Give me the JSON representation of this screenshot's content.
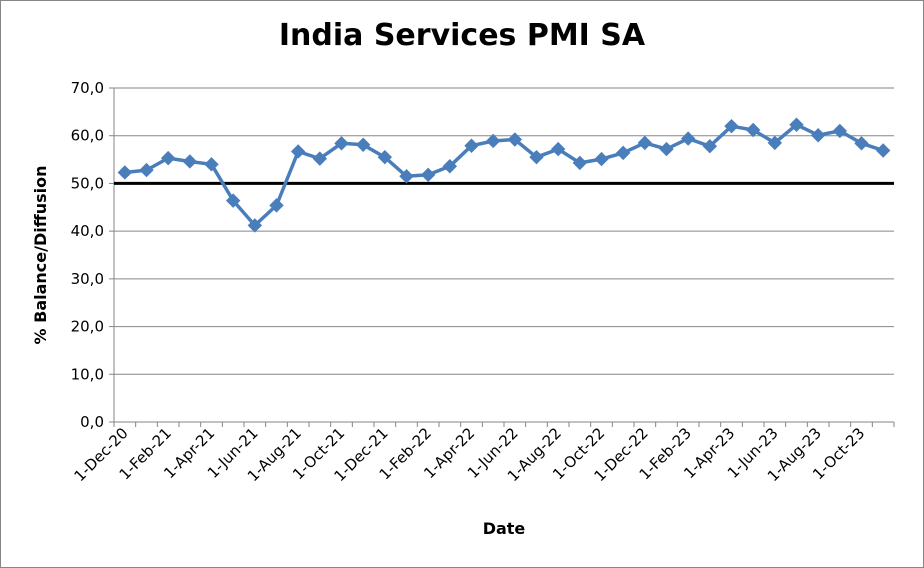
{
  "chart_data": {
    "type": "line",
    "title": "India Services PMI SA",
    "xlabel": "Date",
    "ylabel": "% Balance/Diffusion",
    "ylim": [
      0,
      70
    ],
    "y_ticks": [
      "0,0",
      "10,0",
      "20,0",
      "30,0",
      "40,0",
      "50,0",
      "60,0",
      "70,0"
    ],
    "x_tick_labels": [
      "1-Dec-20",
      "1-Feb-21",
      "1-Apr-21",
      "1-Jun-21",
      "1-Aug-21",
      "1-Oct-21",
      "1-Dec-21",
      "1-Feb-22",
      "1-Apr-22",
      "1-Jun-22",
      "1-Aug-22",
      "1-Oct-22",
      "1-Dec-22",
      "1-Feb-23",
      "1-Apr-23",
      "1-Jun-23",
      "1-Aug-23",
      "1-Oct-23"
    ],
    "grid": true,
    "reference_line": {
      "value": 50,
      "color": "#000000"
    },
    "series": [
      {
        "color": "#4A7EBB",
        "marker": "diamond",
        "x": [
          "1-Dec-20",
          "1-Jan-21",
          "1-Feb-21",
          "1-Mar-21",
          "1-Apr-21",
          "1-May-21",
          "1-Jun-21",
          "1-Jul-21",
          "1-Aug-21",
          "1-Sep-21",
          "1-Oct-21",
          "1-Nov-21",
          "1-Dec-21",
          "1-Jan-22",
          "1-Feb-22",
          "1-Mar-22",
          "1-Apr-22",
          "1-May-22",
          "1-Jun-22",
          "1-Jul-22",
          "1-Aug-22",
          "1-Sep-22",
          "1-Oct-22",
          "1-Nov-22",
          "1-Dec-22",
          "1-Jan-23",
          "1-Feb-23",
          "1-Mar-23",
          "1-Apr-23",
          "1-May-23",
          "1-Jun-23",
          "1-Jul-23",
          "1-Aug-23",
          "1-Sep-23",
          "1-Oct-23",
          "1-Nov-23"
        ],
        "values": [
          52.3,
          52.8,
          55.3,
          54.6,
          54.0,
          46.4,
          41.2,
          45.4,
          56.7,
          55.2,
          58.4,
          58.1,
          55.5,
          51.5,
          51.8,
          53.6,
          57.9,
          58.9,
          59.2,
          55.5,
          57.2,
          54.3,
          55.1,
          56.4,
          58.5,
          57.2,
          59.4,
          57.8,
          62.0,
          61.2,
          58.5,
          62.3,
          60.1,
          61.0,
          58.4,
          56.9
        ]
      }
    ]
  }
}
